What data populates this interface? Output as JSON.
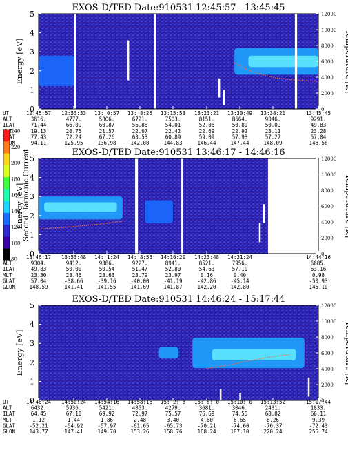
{
  "colors": {
    "background": "#2b1fa8",
    "noise": "#3d3fd6",
    "gap": "#ffffff",
    "band_low": "#1b6cff",
    "band_mid": "#1fa3ff",
    "band_high": "#5fe8ff",
    "temperature": "#ff6a3a"
  },
  "colorbar": {
    "label": "Second Harmonic Current",
    "ticks": [
      "240",
      "220",
      "200",
      "180",
      "160",
      "140",
      "120",
      "100",
      "80"
    ],
    "colors": [
      "#ff1a1a",
      "#ff7a1a",
      "#ffd21a",
      "#d9ff1a",
      "#3dff3d",
      "#1affb0",
      "#1ad5ff",
      "#1a6cff",
      "#2a2ad0",
      "#3a00a8",
      "#000000"
    ]
  },
  "chart_data": [
    {
      "type": "heatmap",
      "title": "EXOS-D/TED   Date:910531   12:45:57 - 13:45:45",
      "ylabel": "Energy [eV]",
      "y2label": "Temperature [K]",
      "ylim": [
        0,
        5
      ],
      "y2lim": [
        0,
        12000
      ],
      "yticks": [
        "0",
        "1",
        "2",
        "3",
        "4",
        "5"
      ],
      "y2ticks": [
        "0",
        "2000",
        "4000",
        "6000",
        "8000",
        "10000",
        "12000"
      ],
      "gaps": [
        [
          12.8,
          13.3
        ],
        [
          41.3,
          41.9
        ],
        [
          91.6,
          92.4
        ]
      ],
      "bands": [
        {
          "x": [
            70,
            100
          ],
          "y": [
            1.8,
            3.2
          ],
          "level": "mid"
        },
        {
          "x": [
            75,
            100
          ],
          "y": [
            2.2,
            2.8
          ],
          "level": "high"
        },
        {
          "x": [
            0,
            13
          ],
          "y": [
            1.2,
            2.8
          ],
          "level": "low"
        }
      ],
      "spikes": [
        {
          "x": 64.5,
          "y": [
            0.6,
            1.6
          ]
        },
        {
          "x": 66.2,
          "y": [
            0.2,
            1.0
          ]
        },
        {
          "x": 32.0,
          "y": [
            1.5,
            3.6
          ]
        }
      ],
      "temperature": {
        "x": [
          70,
          75,
          80,
          85,
          90,
          95,
          100
        ],
        "y": [
          5800,
          4900,
          4300,
          3900,
          3700,
          3550,
          3500
        ]
      },
      "ephemeris": {
        "row_labels": [
          "UT",
          "ALT",
          "ILAT",
          "MLT",
          "GLAT",
          "GLON"
        ],
        "columns": [
          [
            "12:45:57",
            "3616.",
            "71.44",
            "19.13",
            "77.43",
            "94.11"
          ],
          [
            "12:53:33",
            "4777.",
            "66.09",
            "20.75",
            "72.24",
            "125.95"
          ],
          [
            "13: 0:57",
            "5806.",
            "60.87",
            "21.57",
            "67.26",
            "136.98"
          ],
          [
            "13: 8:25",
            "6721.",
            "56.86",
            "22.07",
            "63.53",
            "142.08"
          ],
          [
            "13:15:53",
            "7503.",
            "54.01",
            "22.42",
            "60.89",
            "144.83"
          ],
          [
            "13:23:21",
            "8151.",
            "52.06",
            "22.69",
            "59.09",
            "146.44"
          ],
          [
            "13:30:49",
            "8664.",
            "50.80",
            "22.92",
            "57.93",
            "147.44"
          ],
          [
            "13:38:21",
            "9046.",
            "50.09",
            "23.11",
            "57.27",
            "148.09"
          ],
          [
            "13:45:45",
            "9291.",
            "49.83",
            "23.28",
            "57.04",
            "148.56"
          ]
        ]
      }
    },
    {
      "type": "heatmap",
      "title": "EXOS-D/TED   Date:910531   13:46:17 - 14:46:16",
      "ylabel": "Energy [eV]",
      "y2label": "Temperature [K]",
      "ylim": [
        0,
        5
      ],
      "y2lim": [
        0,
        12000
      ],
      "yticks": [
        "0",
        "1",
        "2",
        "3",
        "4",
        "5"
      ],
      "y2ticks": [
        "0",
        "2000",
        "4000",
        "6000",
        "8000",
        "10000",
        "12000"
      ],
      "gaps": [
        [
          34.5,
          35.5
        ],
        [
          51.0,
          51.6
        ],
        [
          82.0,
          100
        ]
      ],
      "bands": [
        {
          "x": [
            0,
            30
          ],
          "y": [
            1.8,
            3.0
          ],
          "level": "mid"
        },
        {
          "x": [
            2,
            28
          ],
          "y": [
            2.2,
            2.7
          ],
          "level": "high"
        },
        {
          "x": [
            38,
            48
          ],
          "y": [
            1.6,
            2.8
          ],
          "level": "low"
        }
      ],
      "spikes": [
        {
          "x": 79.0,
          "y": [
            0.6,
            1.6
          ]
        },
        {
          "x": 80.5,
          "y": [
            1.6,
            2.6
          ]
        }
      ],
      "temperature": {
        "x": [
          0,
          5,
          10,
          15,
          20,
          25,
          30
        ],
        "y": [
          3100,
          3200,
          3350,
          3500,
          3650,
          3850,
          4100
        ]
      },
      "ephemeris": {
        "row_labels": [
          "UT",
          "ALT",
          "ILAT",
          "MLT",
          "GLAT",
          "GLON"
        ],
        "columns": [
          [
            "13:46:17",
            "9304.",
            "49.83",
            "23.30",
            "57.04",
            "148.59"
          ],
          [
            "13:53:48",
            "9412.",
            "50.00",
            "23.46",
            "-38.66",
            "141.41"
          ],
          [
            "14: 1:24",
            "9386.",
            "50.54",
            "23.63",
            "-39.16",
            "141.55"
          ],
          [
            "14: 8:56",
            "9227.",
            "51.47",
            "23.79",
            "-40.00",
            "141.69"
          ],
          [
            "14:16:20",
            "8941.",
            "52.80",
            "23.97",
            "-41.19",
            "141.87"
          ],
          [
            "14:23:48",
            "8521.",
            "54.63",
            "0.16",
            "-42.86",
            "142.20"
          ],
          [
            "14:31:24",
            "7956.",
            "57.10",
            "0.40",
            "-45.14",
            "142.80"
          ],
          [
            "14:44:16",
            "6685.",
            "63.16",
            "0.98",
            "-50.93",
            "145.10"
          ]
        ]
      }
    },
    {
      "type": "heatmap",
      "title": "EXOS-D/TED   Date:910531   14:46:24 - 15:17:44",
      "ylabel": "Energy [eV]",
      "y2label": "Temperature [K]",
      "ylim": [
        0,
        5
      ],
      "y2lim": [
        0,
        12000
      ],
      "yticks": [
        "0",
        "1",
        "2",
        "3",
        "4",
        "5"
      ],
      "y2ticks": [
        "0",
        "2000",
        "4000",
        "6000",
        "8000",
        "10000",
        "12000"
      ],
      "gaps": [],
      "bands": [
        {
          "x": [
            55,
            95
          ],
          "y": [
            1.7,
            3.3
          ],
          "level": "mid"
        },
        {
          "x": [
            62,
            92
          ],
          "y": [
            2.1,
            2.7
          ],
          "level": "high"
        },
        {
          "x": [
            43,
            50
          ],
          "y": [
            2.2,
            2.8
          ],
          "level": "mid"
        }
      ],
      "spikes": [
        {
          "x": 65.0,
          "y": [
            0.0,
            0.6
          ]
        },
        {
          "x": 72.0,
          "y": [
            0.0,
            0.4
          ]
        },
        {
          "x": 96.5,
          "y": [
            0.2,
            1.2
          ]
        }
      ],
      "temperature": {
        "x": [
          60,
          65,
          70,
          75,
          80,
          85,
          90
        ],
        "y": [
          4000,
          4300,
          4600,
          5000,
          5300,
          5600,
          5800
        ]
      },
      "ephemeris": {
        "row_labels": [
          "UT",
          "ALT",
          "ILAT",
          "MLT",
          "GLAT",
          "GLON"
        ],
        "columns": [
          [
            "14:46:24",
            "6432.",
            "64.45",
            "1.12",
            "-52.21",
            "143.77"
          ],
          [
            "14:50:24",
            "5936.",
            "67.10",
            "1.44",
            "-54.92",
            "147.41"
          ],
          [
            "14:54:16",
            "5421.",
            "69.92",
            "1.86",
            "-57.97",
            "149.70"
          ],
          [
            "14:58:16",
            "4853.",
            "72.97",
            "2.48",
            "-61.65",
            "153.26"
          ],
          [
            "15: 2: 8",
            "4279.",
            "75.57",
            "3.40",
            "-65.73",
            "158.76"
          ],
          [
            "15: 6: 0",
            "3681.",
            "76.69",
            "4.80",
            "-70.21",
            "168.24"
          ],
          [
            "15:10: 0",
            "3046.",
            "74.55",
            "6.65",
            "-74.60",
            "187.10"
          ],
          [
            "15:13:52",
            "2431.",
            "68.82",
            "8.26",
            "-76.37",
            "220.24"
          ],
          [
            "15:17:44",
            "1833.",
            "60.11",
            "9.39",
            "-72.43",
            "255.74"
          ]
        ]
      }
    }
  ]
}
